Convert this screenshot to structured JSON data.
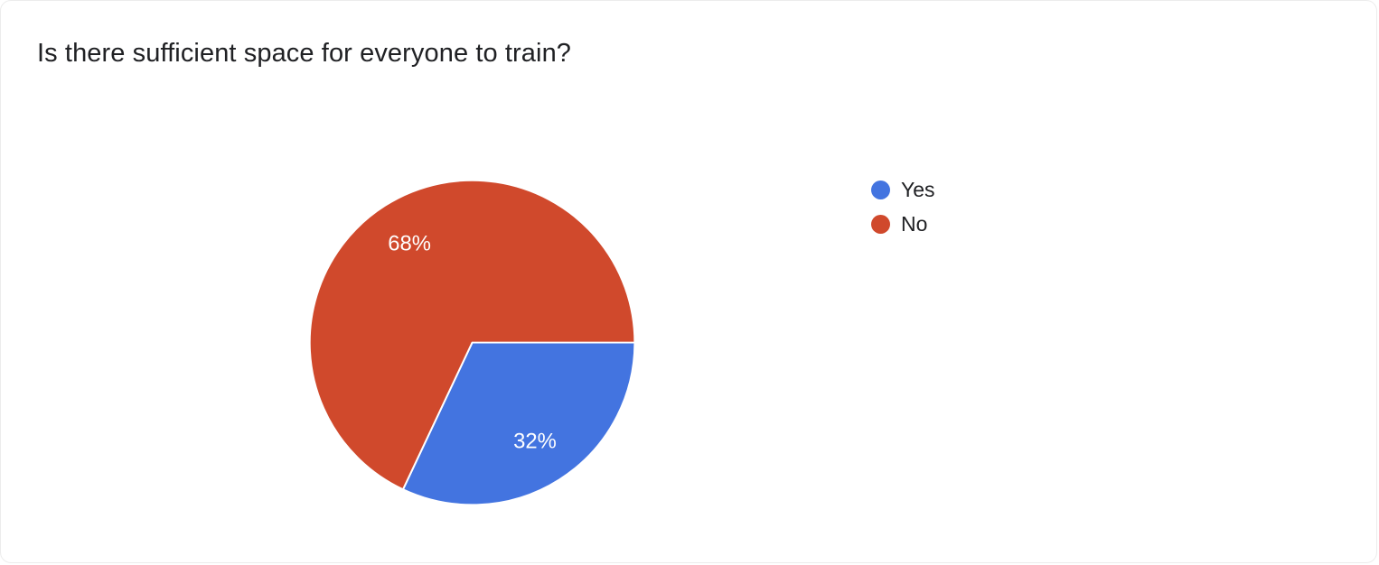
{
  "chart_data": {
    "type": "pie",
    "title": "Is there sufficient space for everyone to train?",
    "slices": [
      {
        "label": "Yes",
        "value": 32,
        "display": "32%",
        "color": "#4374e0"
      },
      {
        "label": "No",
        "value": 68,
        "display": "68%",
        "color": "#d0492c"
      }
    ],
    "start_angle_deg": 0,
    "direction": "clockwise",
    "slice_border_color": "#ffffff",
    "slice_label_color": "#ffffff",
    "legend_position": "right",
    "title_color": "#202124",
    "background_color": "#ffffff"
  }
}
